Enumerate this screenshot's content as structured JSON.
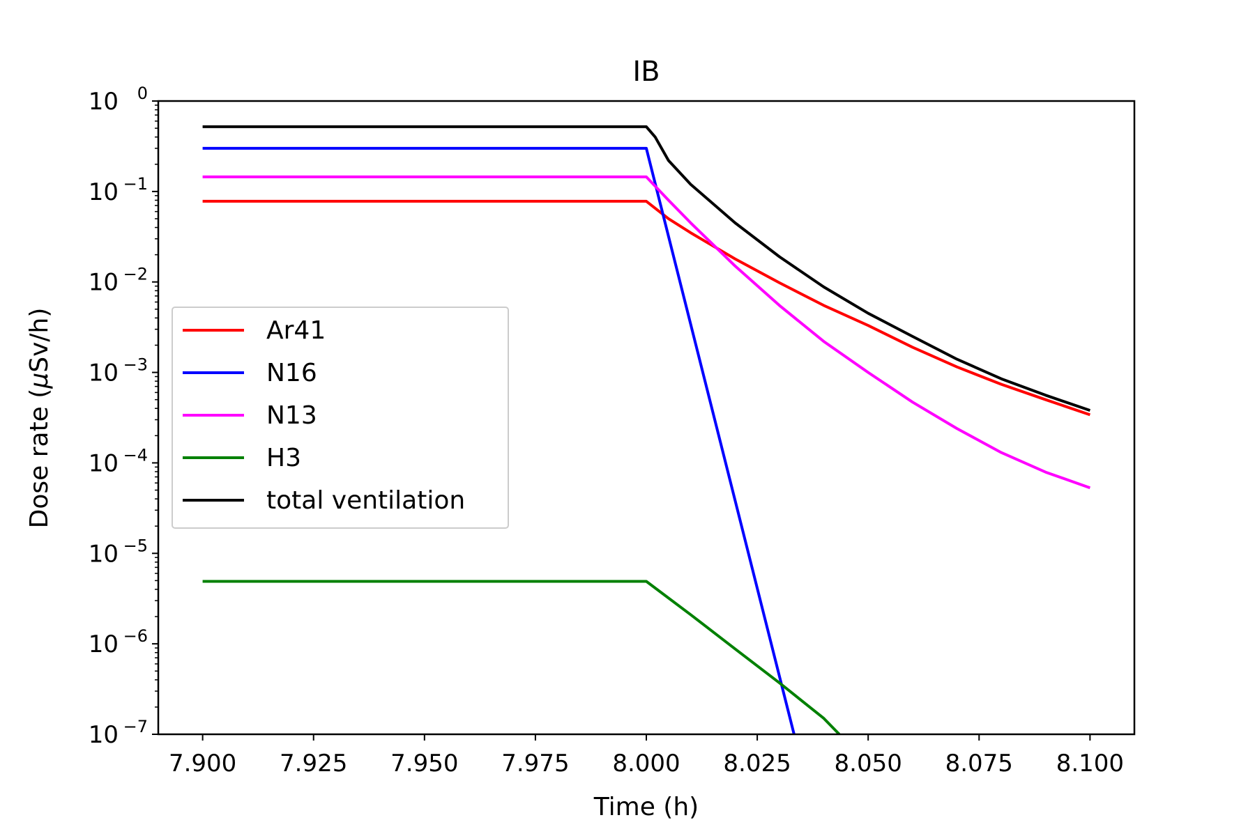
{
  "chart_data": {
    "type": "line",
    "title": "IB",
    "xlabel": "Time (h)",
    "ylabel_prefix": "Dose rate (",
    "ylabel_mu": "μ",
    "ylabel_suffix": "Sv/h)",
    "xlim": [
      7.89,
      8.11
    ],
    "ylim": [
      1e-07,
      1
    ],
    "yscale": "log",
    "grid": false,
    "legend_position": "center-left",
    "x_ticks": [
      7.9,
      7.925,
      7.95,
      7.975,
      8.0,
      8.025,
      8.05,
      8.075,
      8.1
    ],
    "x_tick_labels": [
      "7.900",
      "7.925",
      "7.950",
      "7.975",
      "8.000",
      "8.025",
      "8.050",
      "8.075",
      "8.100"
    ],
    "y_ticks": [
      {
        "base": "10",
        "exp": "0",
        "value": 1
      },
      {
        "base": "10",
        "exp": "−1",
        "value": 0.1
      },
      {
        "base": "10",
        "exp": "−2",
        "value": 0.01
      },
      {
        "base": "10",
        "exp": "−3",
        "value": 0.001
      },
      {
        "base": "10",
        "exp": "−4",
        "value": 0.0001
      },
      {
        "base": "10",
        "exp": "−5",
        "value": 1e-05
      },
      {
        "base": "10",
        "exp": "−6",
        "value": 1e-06
      },
      {
        "base": "10",
        "exp": "−7",
        "value": 1e-07
      }
    ],
    "series": [
      {
        "name": "Ar41",
        "color": "#ff0000",
        "points": [
          [
            7.9,
            0.078
          ],
          [
            8.0,
            0.078
          ],
          [
            8.005,
            0.05
          ],
          [
            8.01,
            0.035
          ],
          [
            8.02,
            0.018
          ],
          [
            8.03,
            0.0098
          ],
          [
            8.04,
            0.0055
          ],
          [
            8.05,
            0.0033
          ],
          [
            8.06,
            0.0019
          ],
          [
            8.07,
            0.00115
          ],
          [
            8.08,
            0.00074
          ],
          [
            8.09,
            0.0005
          ],
          [
            8.1,
            0.00034
          ]
        ]
      },
      {
        "name": "N16",
        "color": "#0000ff",
        "points": [
          [
            7.9,
            0.3
          ],
          [
            8.0,
            0.3
          ],
          [
            8.0333,
            1e-07
          ]
        ]
      },
      {
        "name": "N13",
        "color": "#ff00ff",
        "points": [
          [
            7.9,
            0.145
          ],
          [
            8.0,
            0.145
          ],
          [
            8.005,
            0.08
          ],
          [
            8.01,
            0.045
          ],
          [
            8.02,
            0.015
          ],
          [
            8.03,
            0.0055
          ],
          [
            8.04,
            0.0022
          ],
          [
            8.05,
            0.001
          ],
          [
            8.06,
            0.00047
          ],
          [
            8.07,
            0.00024
          ],
          [
            8.08,
            0.00013
          ],
          [
            8.09,
            7.9e-05
          ],
          [
            8.1,
            5.3e-05
          ]
        ]
      },
      {
        "name": "H3",
        "color": "#008000",
        "points": [
          [
            7.9,
            4.9e-06
          ],
          [
            8.0,
            4.9e-06
          ],
          [
            8.01,
            2.1e-06
          ],
          [
            8.02,
            8.8e-07
          ],
          [
            8.03,
            3.7e-07
          ],
          [
            8.04,
            1.5e-07
          ],
          [
            8.0435,
            1e-07
          ]
        ]
      },
      {
        "name": "total ventilation",
        "color": "#000000",
        "points": [
          [
            7.9,
            0.52
          ],
          [
            8.0,
            0.52
          ],
          [
            8.002,
            0.4
          ],
          [
            8.005,
            0.22
          ],
          [
            8.01,
            0.12
          ],
          [
            8.02,
            0.045
          ],
          [
            8.03,
            0.019
          ],
          [
            8.04,
            0.0088
          ],
          [
            8.05,
            0.0045
          ],
          [
            8.06,
            0.0025
          ],
          [
            8.07,
            0.0014
          ],
          [
            8.08,
            0.00085
          ],
          [
            8.09,
            0.00056
          ],
          [
            8.1,
            0.00038
          ]
        ]
      }
    ]
  }
}
